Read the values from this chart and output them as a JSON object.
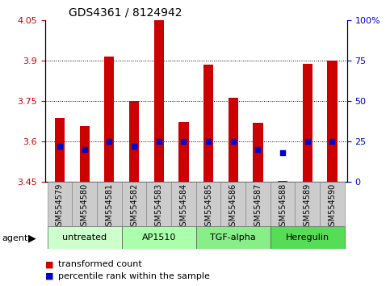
{
  "title": "GDS4361 / 8124942",
  "samples": [
    "GSM554579",
    "GSM554580",
    "GSM554581",
    "GSM554582",
    "GSM554583",
    "GSM554584",
    "GSM554585",
    "GSM554586",
    "GSM554587",
    "GSM554588",
    "GSM554589",
    "GSM554590"
  ],
  "red_values": [
    3.685,
    3.655,
    3.915,
    3.748,
    4.05,
    3.672,
    3.884,
    3.762,
    3.668,
    3.451,
    3.887,
    3.9
  ],
  "blue_values": [
    22,
    20,
    25,
    22,
    25,
    25,
    25,
    25,
    20,
    18,
    25,
    25
  ],
  "ylim_left": [
    3.45,
    4.05
  ],
  "ylim_right": [
    0,
    100
  ],
  "yticks_left": [
    3.45,
    3.6,
    3.75,
    3.9,
    4.05
  ],
  "yticks_right": [
    0,
    25,
    50,
    75,
    100
  ],
  "ytick_labels_left": [
    "3.45",
    "3.6",
    "3.75",
    "3.9",
    "4.05"
  ],
  "ytick_labels_right": [
    "0",
    "25",
    "50",
    "75",
    "100%"
  ],
  "gridlines": [
    3.6,
    3.75,
    3.9
  ],
  "groups": [
    {
      "label": "untreated",
      "start": 0,
      "end": 3,
      "color": "#ccffcc"
    },
    {
      "label": "AP1510",
      "start": 3,
      "end": 6,
      "color": "#aaffaa"
    },
    {
      "label": "TGF-alpha",
      "start": 6,
      "end": 9,
      "color": "#88ee88"
    },
    {
      "label": "Heregulin",
      "start": 9,
      "end": 12,
      "color": "#55dd55"
    }
  ],
  "bar_color": "#cc0000",
  "dot_color": "#0000cc",
  "base_value": 3.45,
  "bar_width": 0.4,
  "dot_size": 22,
  "left_tick_color": "#cc0000",
  "right_tick_color": "#0000cc",
  "sample_bg": "#cccccc",
  "title_fontsize": 10,
  "tick_fontsize": 8,
  "label_fontsize": 7,
  "group_fontsize": 8,
  "legend_fontsize": 8
}
